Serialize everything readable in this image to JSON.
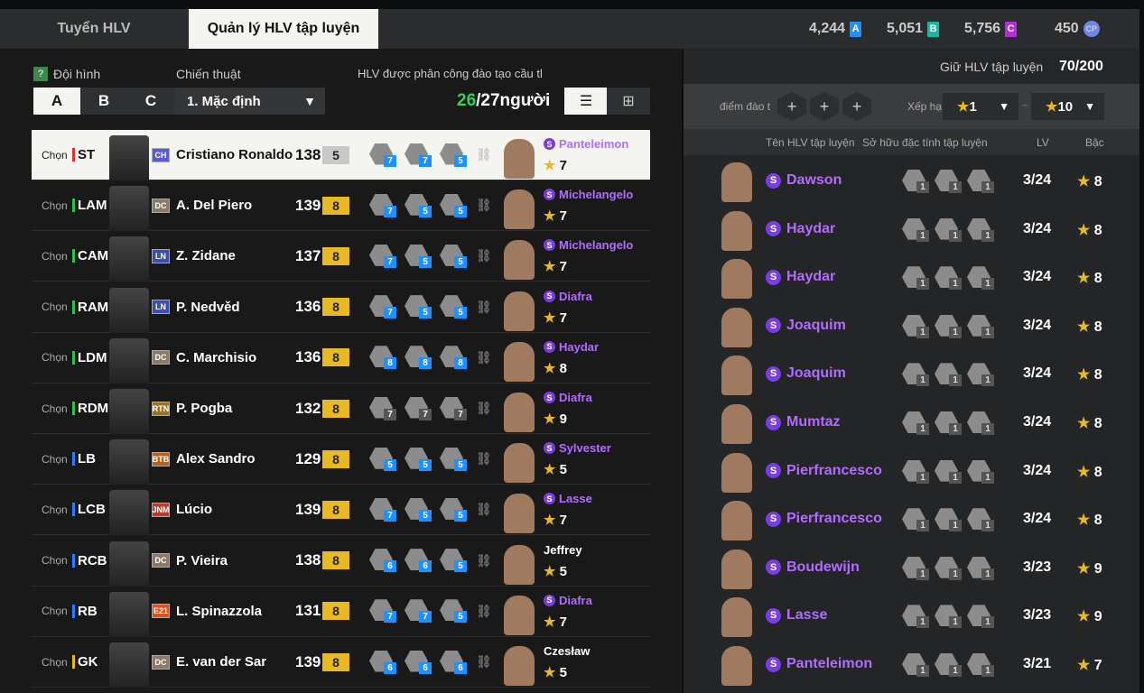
{
  "tabs": [
    "Tuyển HLV",
    "Quản lý HLV tập luyện"
  ],
  "currencies": [
    {
      "value": "4,244",
      "icon": "A",
      "color": "#1e90ff"
    },
    {
      "value": "5,051",
      "icon": "B",
      "color": "#16b8a6"
    },
    {
      "value": "5,756",
      "icon": "C",
      "color": "#b82be0"
    },
    {
      "value": "450",
      "icon": "CP",
      "color": "#6d86e8"
    }
  ],
  "left": {
    "help": "?",
    "formation_label": "Đội hình",
    "formation_options": [
      "A",
      "B",
      "C"
    ],
    "tactic_label": "Chiến thuật",
    "tactic_value": "1. Mặc định",
    "assigned_label": "HLV được phân công đào tạo cầu tl",
    "assigned_count": "26",
    "assigned_total": "/27người"
  },
  "rows": [
    {
      "chon": "Chọn",
      "pos": "ST",
      "pos_color": "#e03030",
      "card": "CH",
      "card_color": "#5b5bd6",
      "name": "Cristiano Ronaldo",
      "ovr": "138",
      "lvl": "5",
      "traits": [
        "7",
        "7",
        "5"
      ],
      "trait_color": "#1e90ff",
      "coach": "Panteleimon",
      "special": true,
      "stars": "7",
      "selected": true
    },
    {
      "chon": "Chọn",
      "pos": "LAM",
      "pos_color": "#2fbf4a",
      "card": "DC",
      "card_color": "#8a7a66",
      "name": "A. Del Piero",
      "ovr": "139",
      "lvl": "8",
      "traits": [
        "7",
        "5",
        "5"
      ],
      "trait_color": "#1e90ff",
      "coach": "Michelangelo",
      "special": true,
      "stars": "7"
    },
    {
      "chon": "Chọn",
      "pos": "CAM",
      "pos_color": "#2fbf4a",
      "card": "LN",
      "card_color": "#3b4fb0",
      "name": "Z. Zidane",
      "ovr": "137",
      "lvl": "8",
      "traits": [
        "7",
        "5",
        "5"
      ],
      "trait_color": "#1e90ff",
      "coach": "Michelangelo",
      "special": true,
      "stars": "7"
    },
    {
      "chon": "Chọn",
      "pos": "RAM",
      "pos_color": "#2fbf4a",
      "card": "LN",
      "card_color": "#3b4fb0",
      "name": "P. Nedvěd",
      "ovr": "136",
      "lvl": "8",
      "traits": [
        "7",
        "5",
        "5"
      ],
      "trait_color": "#1e90ff",
      "coach": "Diafra",
      "special": true,
      "stars": "7"
    },
    {
      "chon": "Chọn",
      "pos": "LDM",
      "pos_color": "#2fbf4a",
      "card": "DC",
      "card_color": "#8a7a66",
      "name": "C. Marchisio",
      "ovr": "136",
      "lvl": "8",
      "traits": [
        "8",
        "8",
        "8"
      ],
      "trait_color": "#1e90ff",
      "coach": "Haydar",
      "special": true,
      "stars": "8"
    },
    {
      "chon": "Chọn",
      "pos": "RDM",
      "pos_color": "#2fbf4a",
      "card": "RTN",
      "card_color": "#9a7420",
      "name": "P. Pogba",
      "ovr": "132",
      "lvl": "8",
      "traits": [
        "7",
        "7",
        "7"
      ],
      "trait_color": "#555555",
      "coach": "Diafra",
      "special": true,
      "stars": "9"
    },
    {
      "chon": "Chọn",
      "pos": "LB",
      "pos_color": "#2a7fff",
      "card": "BTB",
      "card_color": "#b0641e",
      "name": "Alex Sandro",
      "ovr": "129",
      "lvl": "8",
      "traits": [
        "5",
        "5",
        "5"
      ],
      "trait_color": "#1e90ff",
      "coach": "Sylvester",
      "special": true,
      "stars": "5"
    },
    {
      "chon": "Chọn",
      "pos": "LCB",
      "pos_color": "#2a7fff",
      "card": "JNM",
      "card_color": "#c0392b",
      "name": "Lúcio",
      "ovr": "139",
      "lvl": "8",
      "traits": [
        "7",
        "5",
        "5"
      ],
      "trait_color": "#1e90ff",
      "coach": "Lasse",
      "special": true,
      "stars": "7"
    },
    {
      "chon": "Chọn",
      "pos": "RCB",
      "pos_color": "#2a7fff",
      "card": "DC",
      "card_color": "#8a7a66",
      "name": "P. Vieira",
      "ovr": "138",
      "lvl": "8",
      "traits": [
        "6",
        "6",
        "5"
      ],
      "trait_color": "#1e90ff",
      "coach": "Jeffrey",
      "special": false,
      "stars": "5"
    },
    {
      "chon": "Chọn",
      "pos": "RB",
      "pos_color": "#2a7fff",
      "card": "E21",
      "card_color": "#d9541e",
      "name": "L. Spinazzola",
      "ovr": "131",
      "lvl": "8",
      "traits": [
        "7",
        "7",
        "5"
      ],
      "trait_color": "#1e90ff",
      "coach": "Diafra",
      "special": true,
      "stars": "7"
    },
    {
      "chon": "Chọn",
      "pos": "GK",
      "pos_color": "#e8b923",
      "card": "DC",
      "card_color": "#8a7a66",
      "name": "E. van der Sar",
      "ovr": "139",
      "lvl": "8",
      "traits": [
        "6",
        "6",
        "6"
      ],
      "trait_color": "#1e90ff",
      "coach": "Czesław",
      "special": false,
      "stars": "5"
    }
  ],
  "right": {
    "keep_label": "Giữ HLV tập luyện",
    "keep_value": "70/200",
    "points_label": "điểm đào t",
    "rank_label": "Xếp hạ",
    "rank_from": "1",
    "rank_to": "10",
    "tilde": "~",
    "columns": [
      "Tên HLV tập luyện",
      "Sở hữu đặc tính tập luyện",
      "LV",
      "Bậc"
    ],
    "coaches": [
      {
        "name": "Dawson",
        "traits": [
          "1",
          "1",
          "1"
        ],
        "lv": "3/24",
        "rank": "8"
      },
      {
        "name": "Haydar",
        "traits": [
          "1",
          "1",
          "1"
        ],
        "lv": "3/24",
        "rank": "8"
      },
      {
        "name": "Haydar",
        "traits": [
          "1",
          "1",
          "1"
        ],
        "lv": "3/24",
        "rank": "8"
      },
      {
        "name": "Joaquim",
        "traits": [
          "1",
          "1",
          "1"
        ],
        "lv": "3/24",
        "rank": "8"
      },
      {
        "name": "Joaquim",
        "traits": [
          "1",
          "1",
          "1"
        ],
        "lv": "3/24",
        "rank": "8"
      },
      {
        "name": "Mumtaz",
        "traits": [
          "1",
          "1",
          "1"
        ],
        "lv": "3/24",
        "rank": "8"
      },
      {
        "name": "Pierfrancesco",
        "traits": [
          "1",
          "1",
          "1"
        ],
        "lv": "3/24",
        "rank": "8"
      },
      {
        "name": "Pierfrancesco",
        "traits": [
          "1",
          "1",
          "1"
        ],
        "lv": "3/24",
        "rank": "8"
      },
      {
        "name": "Boudewijn",
        "traits": [
          "1",
          "1",
          "1"
        ],
        "lv": "3/23",
        "rank": "9"
      },
      {
        "name": "Lasse",
        "traits": [
          "1",
          "1",
          "1"
        ],
        "lv": "3/23",
        "rank": "9"
      },
      {
        "name": "Panteleimon",
        "traits": [
          "1",
          "1",
          "1"
        ],
        "lv": "3/21",
        "rank": "7"
      }
    ]
  }
}
